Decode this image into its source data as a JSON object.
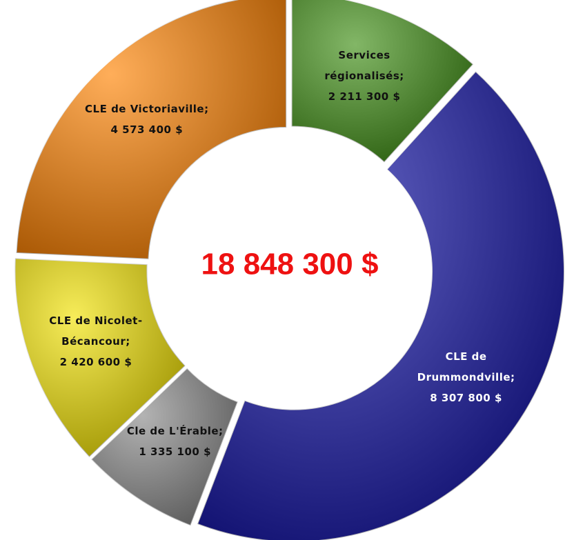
{
  "chart_data": {
    "type": "donut",
    "categories": [
      "Services régionalisés;",
      "CLE de Drummondville;",
      "Cle de L'Érable;",
      "CLE de Nicolet-Bécancour;",
      "CLE de Victoriaville;"
    ],
    "values": [
      2211300,
      8307800,
      1335100,
      2420600,
      4573400
    ],
    "value_labels": [
      "2 211 300 $",
      "8 307 800 $",
      "1 335 100 $",
      "2 420 600 $",
      "4 573 400 $"
    ],
    "colors": [
      "#3f8f14",
      "#1414a8",
      "#8a8a8a",
      "#f2e200",
      "#ff8200"
    ],
    "center_label": "18 848 300 $"
  }
}
